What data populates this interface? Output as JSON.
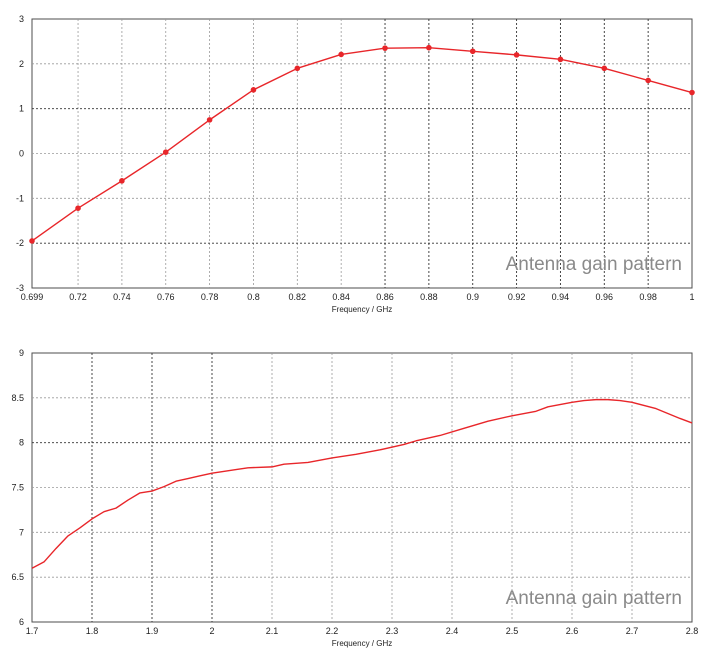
{
  "chart_data": [
    {
      "type": "line",
      "xlabel": "Frequency / GHz",
      "ylabel": "",
      "annotation": "Antenna gain pattern",
      "xlim": [
        0.699,
        1.0
      ],
      "ylim": [
        -3,
        3
      ],
      "xticks": [
        "0.699",
        "0.72",
        "0.74",
        "0.76",
        "0.78",
        "0.8",
        "0.82",
        "0.84",
        "0.86",
        "0.88",
        "0.9",
        "0.92",
        "0.94",
        "0.96",
        "0.98",
        "1"
      ],
      "yticks": [
        "-3",
        "-2",
        "-1",
        "0",
        "1",
        "2",
        "3"
      ],
      "grid": true,
      "markers": true,
      "color": "#e8262a",
      "series": [
        {
          "x": [
            0.699,
            0.72,
            0.74,
            0.76,
            0.78,
            0.8,
            0.82,
            0.84,
            0.86,
            0.88,
            0.9,
            0.92,
            0.94,
            0.96,
            0.98,
            1.0
          ],
          "y": [
            -1.95,
            -1.22,
            -0.61,
            0.03,
            0.75,
            1.42,
            1.9,
            2.21,
            2.35,
            2.36,
            2.28,
            2.2,
            2.1,
            1.9,
            1.63,
            1.36
          ]
        }
      ]
    },
    {
      "type": "line",
      "xlabel": "Frequency / GHz",
      "ylabel": "",
      "annotation": "Antenna gain pattern",
      "xlim": [
        1.7,
        2.8
      ],
      "ylim": [
        6,
        9
      ],
      "xticks": [
        "1.7",
        "1.8",
        "1.9",
        "2",
        "2.1",
        "2.2",
        "2.3",
        "2.4",
        "2.5",
        "2.6",
        "2.7",
        "2.8"
      ],
      "yticks": [
        "6",
        "6.5",
        "7",
        "7.5",
        "8",
        "8.5",
        "9"
      ],
      "grid": true,
      "markers": false,
      "color": "#e8262a",
      "series": [
        {
          "x": [
            1.7,
            1.72,
            1.74,
            1.76,
            1.78,
            1.8,
            1.82,
            1.84,
            1.86,
            1.88,
            1.9,
            1.92,
            1.94,
            1.96,
            1.98,
            2.0,
            2.04,
            2.06,
            2.1,
            2.12,
            2.16,
            2.2,
            2.24,
            2.28,
            2.32,
            2.34,
            2.38,
            2.42,
            2.46,
            2.5,
            2.54,
            2.56,
            2.6,
            2.62,
            2.64,
            2.66,
            2.68,
            2.7,
            2.74,
            2.78,
            2.8
          ],
          "y": [
            6.6,
            6.67,
            6.82,
            6.96,
            7.05,
            7.15,
            7.23,
            7.27,
            7.36,
            7.44,
            7.46,
            7.51,
            7.57,
            7.6,
            7.63,
            7.66,
            7.7,
            7.72,
            7.73,
            7.76,
            7.78,
            7.83,
            7.87,
            7.92,
            7.98,
            8.02,
            8.08,
            8.16,
            8.24,
            8.3,
            8.35,
            8.4,
            8.45,
            8.47,
            8.48,
            8.48,
            8.47,
            8.45,
            8.38,
            8.27,
            8.22
          ]
        }
      ]
    }
  ]
}
